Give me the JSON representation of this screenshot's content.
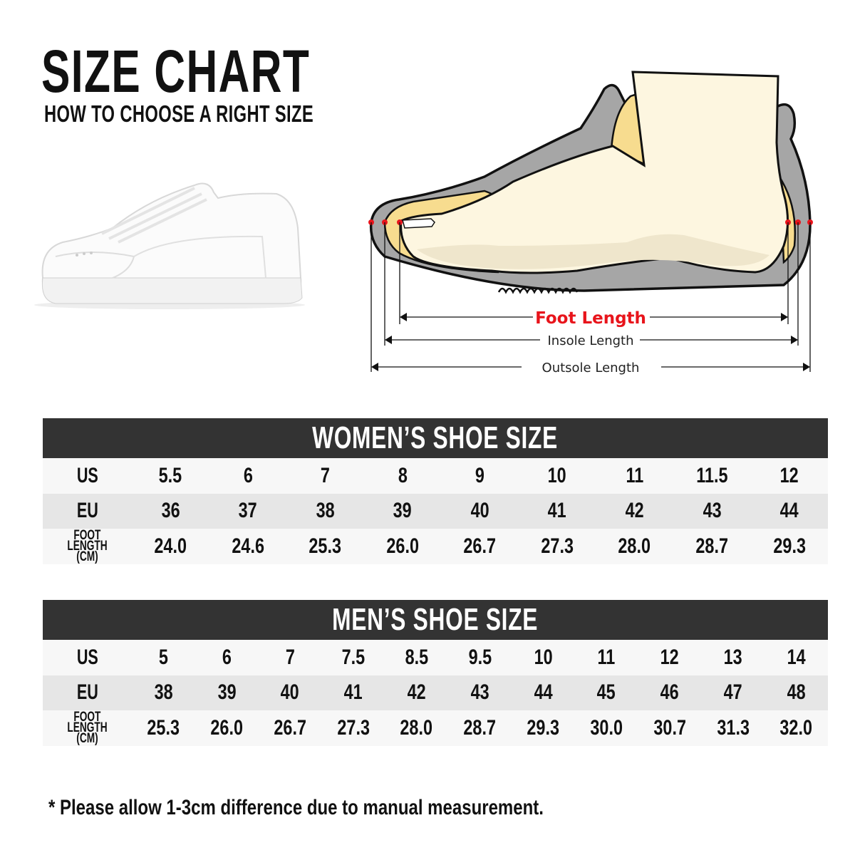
{
  "header": {
    "title": "SIZE CHART",
    "subtitle": "HOW TO CHOOSE A RIGHT SIZE"
  },
  "diagram": {
    "foot_length_label": "Foot Length",
    "insole_length_label": "Insole Length",
    "outsole_length_label": "Outsole Length",
    "colors": {
      "foot_length": "#e8141b",
      "marker_dots": "#e8141b",
      "shoe": "#a6a6a6",
      "insole": "#f7dc8f",
      "foot": "#fdf6e0"
    }
  },
  "women": {
    "title": "WOMEN’S SHOE SIZE",
    "row_labels": {
      "us": "US",
      "eu": "EU",
      "foot_line1": "FOOT",
      "foot_line2": "LENGTH (CM)"
    },
    "us": [
      "5.5",
      "6",
      "7",
      "8",
      "9",
      "10",
      "11",
      "11.5",
      "12"
    ],
    "eu": [
      "36",
      "37",
      "38",
      "39",
      "40",
      "41",
      "42",
      "43",
      "44"
    ],
    "foot_length": [
      "24.0",
      "24.6",
      "25.3",
      "26.0",
      "26.7",
      "27.3",
      "28.0",
      "28.7",
      "29.3"
    ]
  },
  "men": {
    "title": "MEN’S SHOE SIZE",
    "row_labels": {
      "us": "US",
      "eu": "EU",
      "foot_line1": "FOOT",
      "foot_line2": "LENGTH (CM)"
    },
    "us": [
      "5",
      "6",
      "7",
      "7.5",
      "8.5",
      "9.5",
      "10",
      "11",
      "12",
      "13",
      "14"
    ],
    "eu": [
      "38",
      "39",
      "40",
      "41",
      "42",
      "43",
      "44",
      "45",
      "46",
      "47",
      "48"
    ],
    "foot_length": [
      "25.3",
      "26.0",
      "26.7",
      "27.3",
      "28.0",
      "28.7",
      "29.3",
      "30.0",
      "30.7",
      "31.3",
      "32.0"
    ]
  },
  "footnote": "* Please allow 1-3cm difference due to manual measurement.",
  "colors": {
    "table_header_bg": "#333333",
    "row_light": "#f7f7f7",
    "row_dark": "#e6e6e6"
  }
}
